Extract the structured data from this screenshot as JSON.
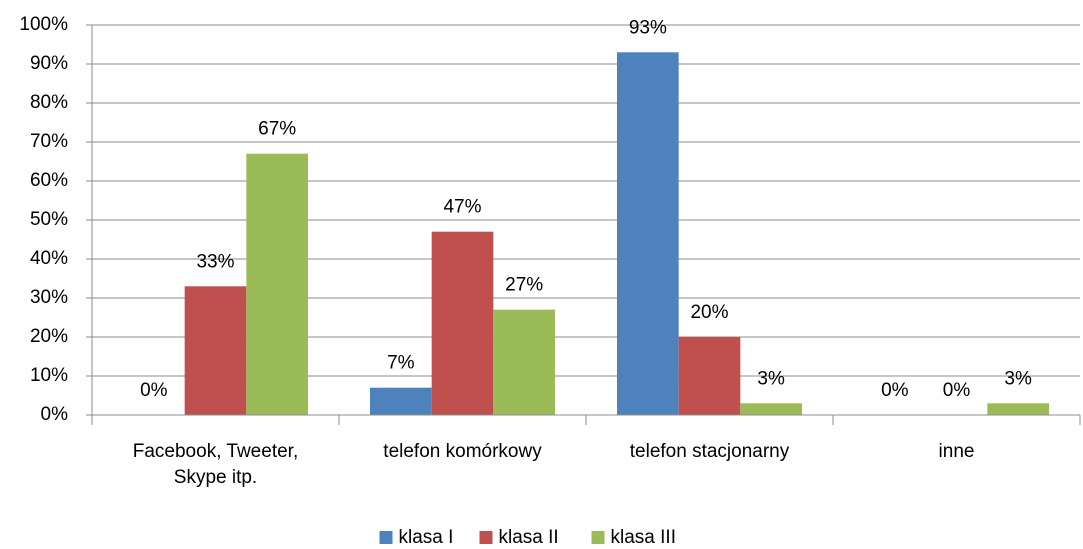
{
  "chart_data": {
    "type": "bar",
    "categories": [
      "Facebook, Tweeter, Skype itp.",
      "telefon komórkowy",
      "telefon stacjonarny",
      "inne"
    ],
    "series": [
      {
        "name": "klasa I",
        "color": "#4f81bd",
        "values": [
          0,
          7,
          93,
          0
        ],
        "value_labels": [
          "0%",
          "7%",
          "93%",
          "0%"
        ]
      },
      {
        "name": "klasa II",
        "color": "#c0504d",
        "values": [
          33,
          47,
          20,
          0
        ],
        "value_labels": [
          "33%",
          "47%",
          "20%",
          "0%"
        ]
      },
      {
        "name": "klasa III",
        "color": "#9bbb59",
        "values": [
          67,
          27,
          3,
          3
        ],
        "value_labels": [
          "67%",
          "27%",
          "3%",
          "3%"
        ]
      }
    ],
    "ylim": [
      0,
      100
    ],
    "yticks": [
      {
        "value": 0,
        "label": "0%"
      },
      {
        "value": 10,
        "label": "10%"
      },
      {
        "value": 20,
        "label": "20%"
      },
      {
        "value": 30,
        "label": "30%"
      },
      {
        "value": 40,
        "label": "40%"
      },
      {
        "value": 50,
        "label": "50%"
      },
      {
        "value": 60,
        "label": "60%"
      },
      {
        "value": 70,
        "label": "70%"
      },
      {
        "value": 80,
        "label": "80%"
      },
      {
        "value": 90,
        "label": "90%"
      },
      {
        "value": 100,
        "label": "100%"
      }
    ],
    "grid": true,
    "legend": "bottom"
  }
}
